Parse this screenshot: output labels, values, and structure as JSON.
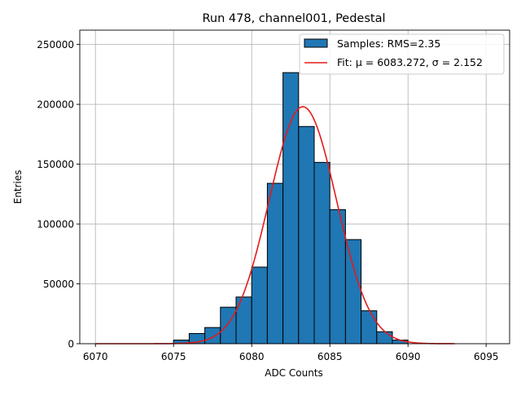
{
  "chart_data": {
    "type": "histogram",
    "title": "Run 478, channel001, Pedestal",
    "xlabel": "ADC Counts",
    "ylabel": "Entries",
    "xlim": [
      6069,
      6096.5
    ],
    "ylim": [
      0,
      262000
    ],
    "xticks": [
      6070,
      6075,
      6080,
      6085,
      6090,
      6095
    ],
    "yticks": [
      0,
      50000,
      100000,
      150000,
      200000,
      250000
    ],
    "grid": true,
    "bin_width": 1,
    "bins": [
      {
        "x": 6075,
        "count": 3000
      },
      {
        "x": 6076,
        "count": 8500
      },
      {
        "x": 6077,
        "count": 13500
      },
      {
        "x": 6078,
        "count": 30500
      },
      {
        "x": 6079,
        "count": 39000
      },
      {
        "x": 6080,
        "count": 64000
      },
      {
        "x": 6081,
        "count": 134000
      },
      {
        "x": 6082,
        "count": 226500
      },
      {
        "x": 6083,
        "count": 181500
      },
      {
        "x": 6084,
        "count": 151500
      },
      {
        "x": 6085,
        "count": 112000
      },
      {
        "x": 6086,
        "count": 87000
      },
      {
        "x": 6087,
        "count": 27500
      },
      {
        "x": 6088,
        "count": 10000
      },
      {
        "x": 6089,
        "count": 3000
      }
    ],
    "fit": {
      "mu": 6083.272,
      "sigma": 2.152,
      "amplitude": 198000,
      "x_range": [
        6070,
        6093
      ]
    },
    "legend": {
      "position": "top-right",
      "entries": [
        {
          "label": "Samples: RMS=2.35",
          "kind": "patch",
          "color": "#1f77b4"
        },
        {
          "label": "Fit: μ = 6083.272, σ = 2.152",
          "kind": "line",
          "color": "#e41a1c"
        }
      ]
    },
    "colors": {
      "bar": "#1f77b4",
      "bar_edge": "#000000",
      "fit": "#e41a1c",
      "grid": "#b0b0b0"
    }
  }
}
